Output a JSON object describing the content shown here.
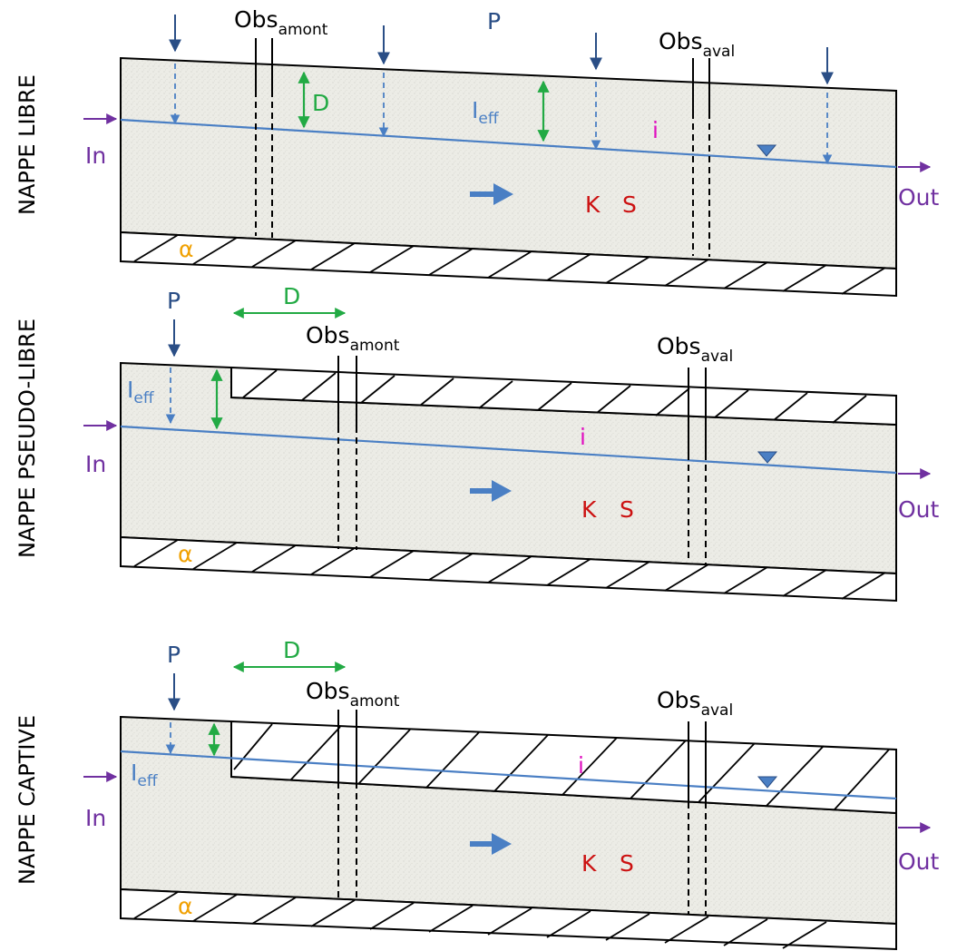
{
  "panels": [
    {
      "side_label": "NAPPE LIBRE",
      "labels": {
        "P": "P",
        "D": "D",
        "I": "I",
        "eff": "eff",
        "i": "i",
        "K": "K",
        "S": "S",
        "In": "In",
        "Out": "Out",
        "alpha": "α",
        "obs_base": "Obs",
        "amont": "amont",
        "aval": "aval"
      }
    },
    {
      "side_label": "NAPPE PSEUDO-LIBRE",
      "labels": {
        "P": "P",
        "D": "D",
        "I": "I",
        "eff": "eff",
        "i": "i",
        "K": "K",
        "S": "S",
        "In": "In",
        "Out": "Out",
        "alpha": "α",
        "obs_base": "Obs",
        "amont": "amont",
        "aval": "aval"
      }
    },
    {
      "side_label": "NAPPE CAPTIVE",
      "labels": {
        "P": "P",
        "D": "D",
        "I": "I",
        "eff": "eff",
        "i": "i",
        "K": "K",
        "S": "S",
        "In": "In",
        "Out": "Out",
        "alpha": "α",
        "obs_base": "Obs",
        "amont": "amont",
        "aval": "aval"
      }
    }
  ],
  "colors": {
    "water_line": "#4a7fc4",
    "rain": "#2a4e86",
    "depth": "#22aa44",
    "in_out": "#7030a0",
    "gradient": "#e010c0",
    "params": "#cc1111",
    "alpha": "#f0a000",
    "aquifer_fill": "#ebebe4"
  }
}
